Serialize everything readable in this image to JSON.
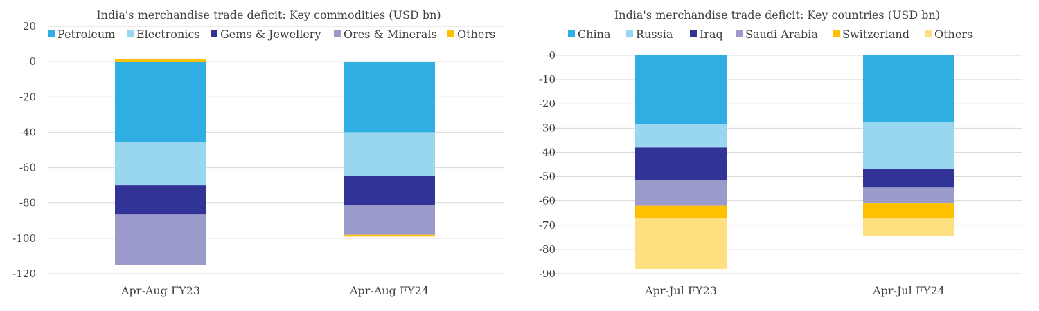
{
  "chart_data": [
    {
      "type": "bar",
      "stacked": true,
      "title": "India's merchandise trade deficit: Key commodities (USD bn)",
      "categories": [
        "Apr-Aug FY23",
        "Apr-Aug FY24"
      ],
      "ylim": [
        -120,
        20
      ],
      "yticks": [
        20,
        0,
        -20,
        -40,
        -60,
        -80,
        -100,
        -120
      ],
      "grid": true,
      "legend_position": "top",
      "series": [
        {
          "name": "Petroleum",
          "color": "#2eaee2",
          "values": [
            -45.5,
            -40
          ]
        },
        {
          "name": "Electronics",
          "color": "#99d7f0",
          "values": [
            -24.5,
            -24.5
          ]
        },
        {
          "name": "Gems & Jewellery",
          "color": "#323397",
          "values": [
            -16.5,
            -16.5
          ]
        },
        {
          "name": "Ores & Minerals",
          "color": "#9b9bcb",
          "values": [
            -28.5,
            -17
          ]
        },
        {
          "name": "Others",
          "color": "#ffc000",
          "values": [
            1.5,
            -1
          ]
        }
      ]
    },
    {
      "type": "bar",
      "stacked": true,
      "title": "India's merchandise trade deficit: Key countries (USD bn)",
      "categories": [
        "Apr-Jul FY23",
        "Apr-Jul FY24"
      ],
      "ylim": [
        -90,
        0
      ],
      "yticks": [
        0,
        -10,
        -20,
        -30,
        -40,
        -50,
        -60,
        -70,
        -80,
        -90
      ],
      "grid": true,
      "legend_position": "top",
      "series": [
        {
          "name": "China",
          "color": "#2eaee2",
          "values": [
            -28.5,
            -27.5
          ]
        },
        {
          "name": "Russia",
          "color": "#99d7f0",
          "values": [
            -9.5,
            -19.5
          ]
        },
        {
          "name": "Iraq",
          "color": "#323397",
          "values": [
            -13.5,
            -7.5
          ]
        },
        {
          "name": "Saudi Arabia",
          "color": "#9b9bcb",
          "values": [
            -10.5,
            -6.5
          ]
        },
        {
          "name": "Switzerland",
          "color": "#ffc000",
          "values": [
            -5,
            -6
          ]
        },
        {
          "name": "Others",
          "color": "#ffe080",
          "values": [
            -21,
            -7.5
          ]
        }
      ]
    }
  ]
}
